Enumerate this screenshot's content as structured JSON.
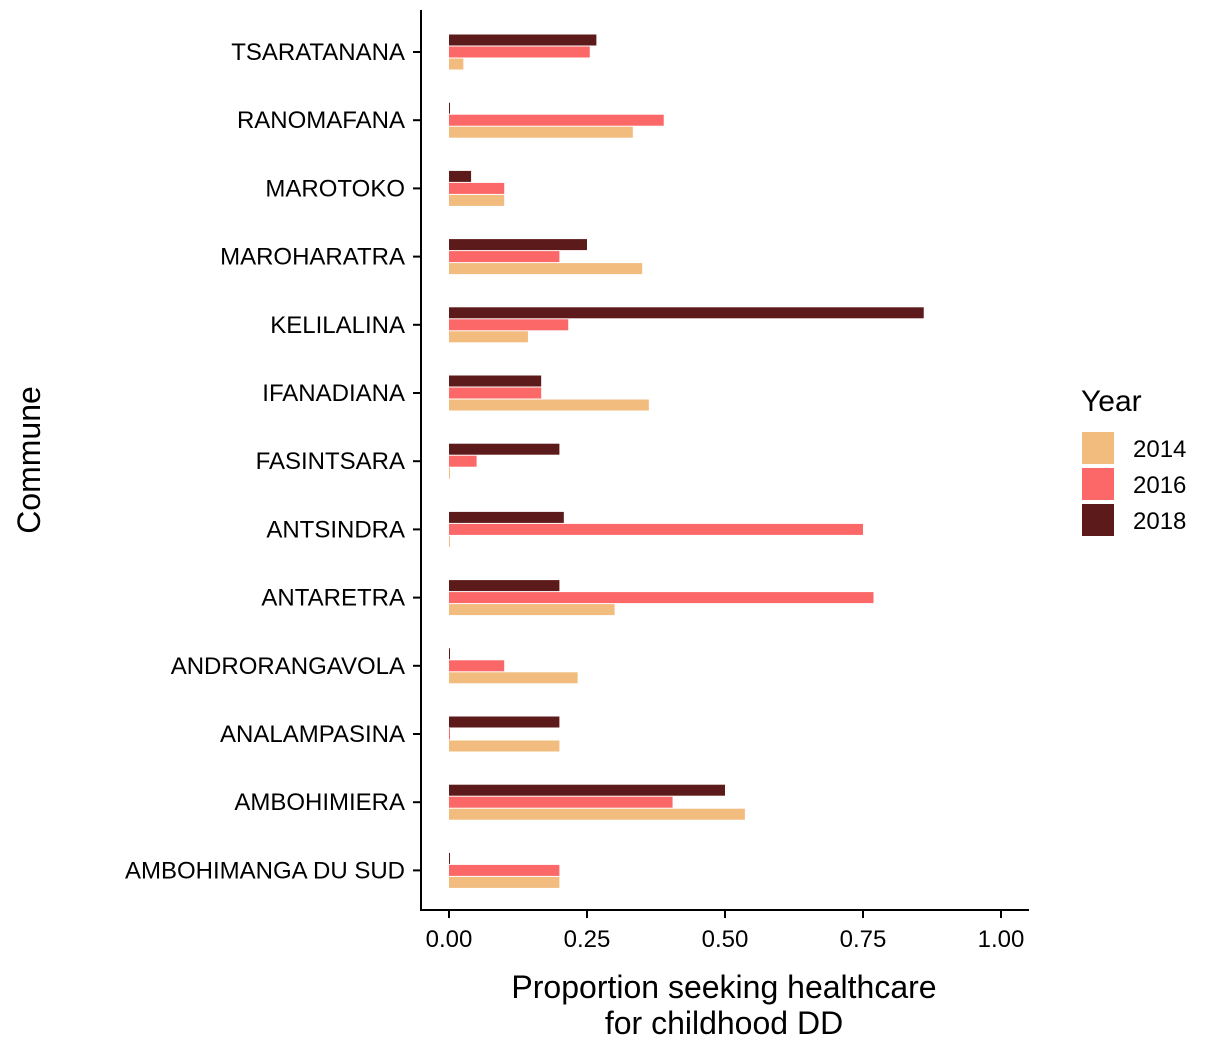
{
  "chart_data": {
    "type": "bar",
    "orientation": "horizontal",
    "xlabel": [
      "Proportion seeking healthcare",
      "for childhood DD"
    ],
    "ylabel": "Commune",
    "xlim": [
      0,
      1
    ],
    "x_ticks": [
      "0.00",
      "0.25",
      "0.50",
      "0.75",
      "1.00"
    ],
    "x_tick_values": [
      0,
      0.25,
      0.5,
      0.75,
      1.0
    ],
    "categories": [
      "TSARATANANA",
      "RANOMAFANA",
      "MAROTOKO",
      "MAROHARATRA",
      "KELILALINA",
      "IFANADIANA",
      "FASINTSARA",
      "ANTSINDRA",
      "ANTARETRA",
      "ANDRORANGAVOLA",
      "ANALAMPASINA",
      "AMBOHIMIERA",
      "AMBOHIMANGA DU SUD"
    ],
    "legend_title": "Year",
    "legend_position": "right",
    "grid": false,
    "series": [
      {
        "name": "2014",
        "color": "#F2BC7E",
        "values": [
          0.026,
          0.333,
          0.1,
          0.35,
          0.143,
          0.362,
          0.0,
          0.0,
          0.3,
          0.233,
          0.2,
          0.536,
          0.2
        ]
      },
      {
        "name": "2016",
        "color": "#FC6767",
        "values": [
          0.255,
          0.389,
          0.1,
          0.2,
          0.216,
          0.167,
          0.05,
          0.75,
          0.769,
          0.1,
          0.0,
          0.405,
          0.2
        ]
      },
      {
        "name": "2018",
        "color": "#5C1B1A",
        "values": [
          0.267,
          0.0,
          0.04,
          0.25,
          0.86,
          0.167,
          0.2,
          0.208,
          0.2,
          0.0,
          0.2,
          0.5,
          0.0
        ]
      }
    ]
  }
}
